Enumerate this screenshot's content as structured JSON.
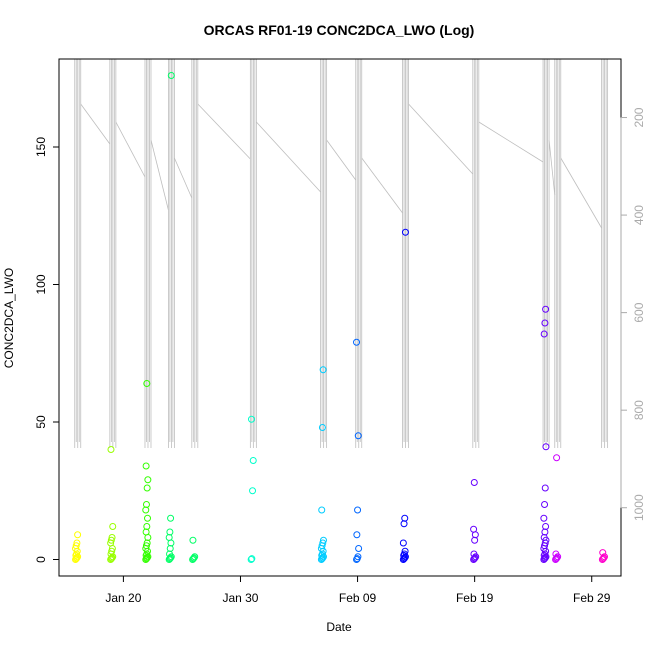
{
  "chart_data": {
    "type": "scatter",
    "title": "ORCAS RF01-19 CONC2DCA_LWO (Log)",
    "xlabel": "Date",
    "ylabel": "CONC2DCA_LWO",
    "x_tick_labels": [
      "Jan 20",
      "Jan 30",
      "Feb 09",
      "Feb 19",
      "Feb 29"
    ],
    "x_tick_dates": [
      "2016-01-20",
      "2016-01-30",
      "2016-02-09",
      "2016-02-19",
      "2016-02-29"
    ],
    "xlim": [
      "2016-01-14 12:00",
      "2016-03-02 12:00"
    ],
    "ylim": [
      -6,
      182
    ],
    "y_ticks": [
      0,
      50,
      100,
      150
    ],
    "right_axis": {
      "ticks": [
        200,
        400,
        600,
        800,
        1000
      ],
      "range": [
        80,
        1140
      ],
      "reversed": true,
      "color": "#aaaaaa"
    },
    "colors": {
      "points": [
        "#ffff00",
        "#99ff00",
        "#33ff00",
        "#00ff66",
        "#00ffcc",
        "#00ccff",
        "#0066ff",
        "#0000ff",
        "#6600ff",
        "#cc00ff",
        "#ff00cc"
      ],
      "altitude_line": "#bebebe"
    },
    "flights": [
      {
        "date": "2016-01-16",
        "values": [
          0,
          0.3,
          0.6,
          1,
          1.5,
          2,
          3,
          4,
          5,
          6,
          9
        ]
      },
      {
        "date": "2016-01-19",
        "values": [
          0,
          0.3,
          0.6,
          1,
          2,
          3,
          4,
          6,
          7,
          8,
          12,
          40
        ]
      },
      {
        "date": "2016-01-22",
        "values": [
          0,
          0.3,
          0.6,
          1,
          1.5,
          2,
          3,
          4,
          5,
          6,
          8,
          10,
          12,
          15,
          18,
          20,
          26,
          29,
          34,
          64
        ]
      },
      {
        "date": "2016-01-24",
        "values": [
          0,
          0.3,
          0.6,
          1,
          2,
          4,
          6,
          8,
          10,
          15,
          176
        ]
      },
      {
        "date": "2016-01-26",
        "values": [
          0,
          0.3,
          0.6,
          1,
          7
        ]
      },
      {
        "date": "2016-01-31",
        "values": [
          0,
          0.3,
          25,
          36,
          51
        ]
      },
      {
        "date": "2016-02-06",
        "values": [
          0,
          0.3,
          0.6,
          1,
          1.5,
          2,
          3,
          4,
          5,
          6,
          7,
          18,
          48,
          69
        ]
      },
      {
        "date": "2016-02-09",
        "values": [
          0,
          0.3,
          1,
          4,
          9,
          18,
          45,
          79
        ]
      },
      {
        "date": "2016-02-13",
        "values": [
          0,
          0.3,
          0.6,
          1,
          1.5,
          2,
          3,
          6,
          13,
          15,
          119
        ]
      },
      {
        "date": "2016-02-19",
        "values": [
          0,
          0.3,
          0.6,
          1,
          2,
          7,
          9,
          11,
          28
        ]
      },
      {
        "date": "2016-02-25",
        "values": [
          0,
          0.3,
          0.6,
          1,
          1.5,
          2,
          3,
          4,
          5,
          6,
          7,
          8,
          10,
          12,
          15,
          20,
          26,
          41,
          82,
          86,
          91
        ]
      },
      {
        "date": "2016-02-26",
        "values": [
          0,
          0.3,
          0.6,
          1,
          2,
          37
        ]
      },
      {
        "date": "2016-03-01",
        "values": [
          0,
          0.3,
          0.6,
          1,
          2.5
        ]
      }
    ]
  }
}
